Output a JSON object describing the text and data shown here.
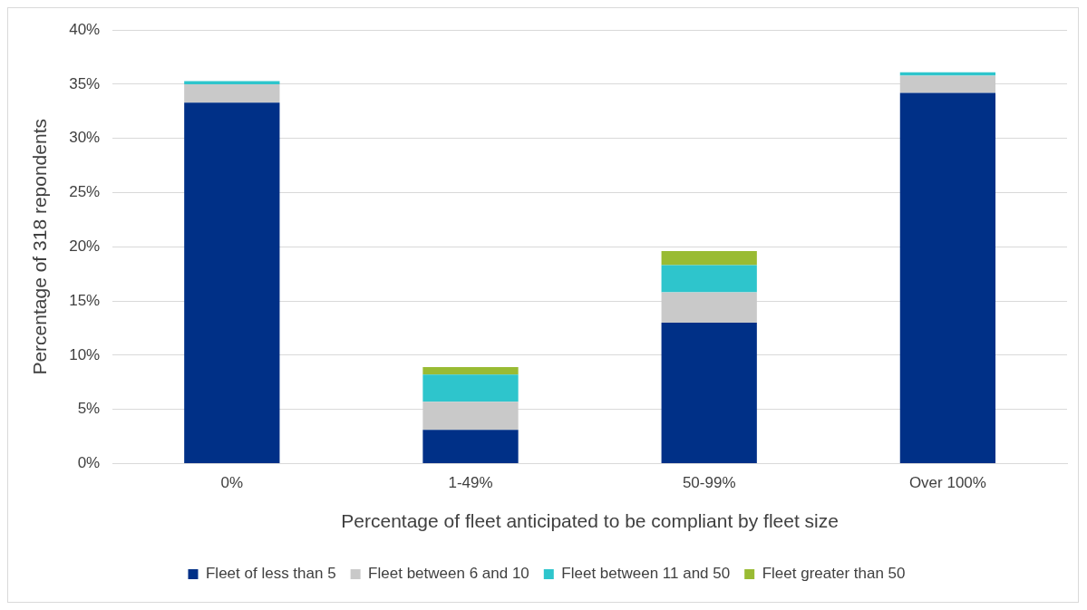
{
  "chart_data": {
    "type": "bar",
    "stacked": true,
    "xlabel": "Percentage of fleet anticipated to be compliant by fleet size",
    "ylabel": "Percentage of 318 repondents",
    "categories": [
      "0%",
      "1-49%",
      "50-99%",
      "Over 100%"
    ],
    "series": [
      {
        "name": "Fleet of less than 5",
        "color": "#003087",
        "values": [
          33.3,
          3.1,
          13.0,
          34.2
        ]
      },
      {
        "name": "Fleet between 6 and 10",
        "color": "#c9c9c9",
        "values": [
          1.7,
          2.6,
          2.8,
          1.6
        ]
      },
      {
        "name": "Fleet between 11 and 50",
        "color": "#2ec5cc",
        "values": [
          0.3,
          2.5,
          2.5,
          0.3
        ]
      },
      {
        "name": "Fleet greater than 50",
        "color": "#99bb33",
        "values": [
          0,
          0.7,
          1.3,
          0
        ]
      }
    ],
    "ylim": [
      0,
      40
    ],
    "yticks": [
      {
        "value": 0,
        "label": "0%"
      },
      {
        "value": 5,
        "label": "5%"
      },
      {
        "value": 10,
        "label": "10%"
      },
      {
        "value": 15,
        "label": "15%"
      },
      {
        "value": 20,
        "label": "20%"
      },
      {
        "value": 25,
        "label": "25%"
      },
      {
        "value": 30,
        "label": "30%"
      },
      {
        "value": 35,
        "label": "35%"
      },
      {
        "value": 40,
        "label": "40%"
      }
    ],
    "grid": "y",
    "legend": "bottom"
  }
}
